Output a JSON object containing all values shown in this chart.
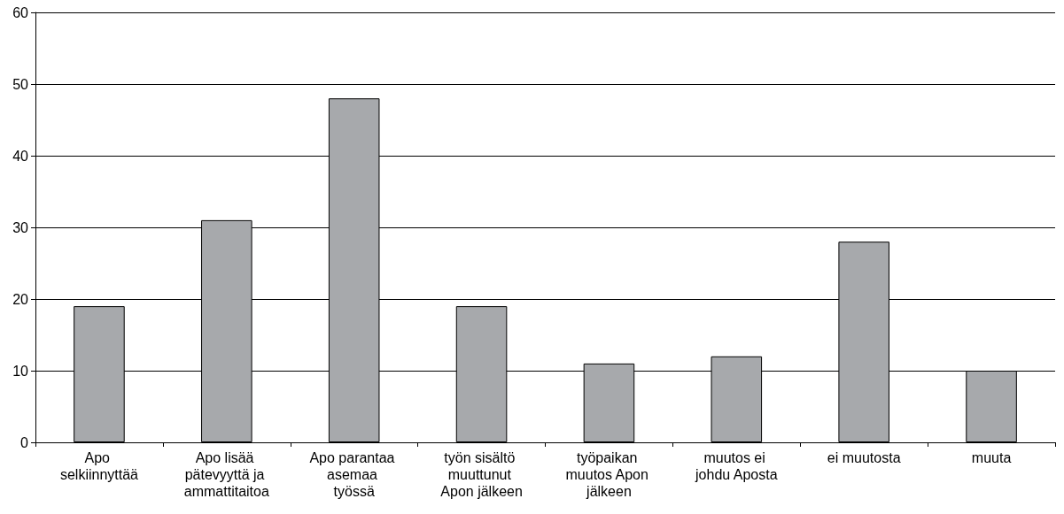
{
  "chart_data": {
    "type": "bar",
    "categories": [
      "Apo selkiinnyttää",
      "Apo lisää pätevyyttä ja ammattitaitoa",
      "Apo parantaa asemaa työssä",
      "työn sisältö muuttunut Apon jälkeen",
      "työpaikan muutos Apon jälkeen",
      "muutos ei johdu Aposta",
      "ei muutosta",
      "muuta"
    ],
    "values": [
      19,
      31,
      48,
      19,
      11,
      12,
      28,
      10
    ],
    "color": "#a7a9ac",
    "ylim": [
      0,
      60
    ],
    "yticks": [
      0,
      10,
      20,
      30,
      40,
      50,
      60
    ],
    "grid": "y"
  }
}
